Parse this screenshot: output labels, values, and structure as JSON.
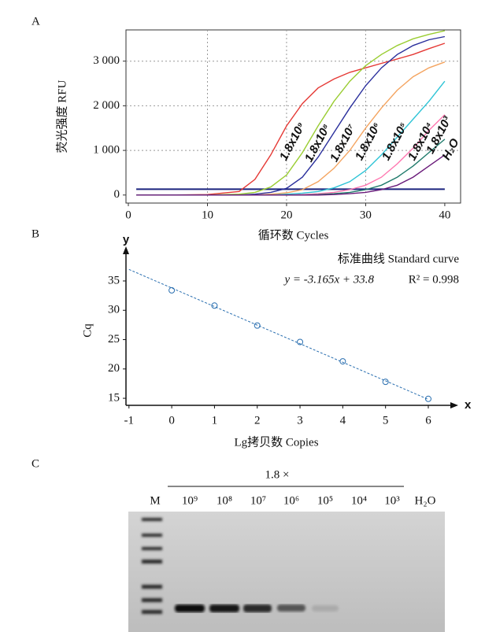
{
  "panels": [
    "A",
    "B",
    "C"
  ],
  "chart_data": [
    {
      "type": "line",
      "xlabel": "循环数 Cycles",
      "ylabel": "荧光强度 RFU",
      "x": [
        1,
        5,
        10,
        14,
        16,
        18,
        20,
        22,
        24,
        26,
        28,
        30,
        32,
        34,
        36,
        38,
        40
      ],
      "xlim": [
        -0.3,
        42
      ],
      "xticks": [
        0,
        10,
        20,
        30,
        40
      ],
      "ylim": [
        -180,
        3700
      ],
      "yticks": [
        0,
        {
          "value": 1000,
          "label": "1 000"
        },
        {
          "value": 2000,
          "label": "2 000"
        },
        {
          "value": 3000,
          "label": "3 000"
        }
      ],
      "grid": true,
      "threshold": 130,
      "threshold_color": "#1a237e",
      "series": [
        {
          "name": "1.8x10⁹",
          "color": "#e53935",
          "values": [
            0,
            0,
            10,
            80,
            350,
            900,
            1550,
            2050,
            2400,
            2600,
            2750,
            2850,
            2950,
            3050,
            3150,
            3280,
            3400
          ]
        },
        {
          "name": "1.8x10⁸",
          "color": "#9acd32",
          "values": [
            0,
            0,
            0,
            20,
            60,
            180,
            450,
            950,
            1550,
            2100,
            2550,
            2900,
            3150,
            3350,
            3500,
            3600,
            3680
          ]
        },
        {
          "name": "1.8x10⁷",
          "color": "#2a2f9c",
          "values": [
            0,
            0,
            0,
            0,
            20,
            60,
            150,
            400,
            850,
            1400,
            1950,
            2450,
            2850,
            3150,
            3350,
            3480,
            3550
          ]
        },
        {
          "name": "1.8x10⁶",
          "color": "#f4a460",
          "values": [
            0,
            0,
            0,
            0,
            0,
            20,
            50,
            120,
            300,
            600,
            1000,
            1500,
            1950,
            2350,
            2650,
            2850,
            2980
          ]
        },
        {
          "name": "1.8x10⁵",
          "color": "#2ec4d6",
          "values": [
            0,
            0,
            0,
            0,
            0,
            0,
            20,
            40,
            80,
            160,
            300,
            550,
            900,
            1300,
            1700,
            2100,
            2550
          ]
        },
        {
          "name": "1.8x10⁴",
          "color": "#ff77b0",
          "values": [
            0,
            0,
            0,
            0,
            0,
            0,
            0,
            10,
            30,
            60,
            120,
            220,
            400,
            700,
            1050,
            1450,
            1800
          ]
        },
        {
          "name": "1.8x10³",
          "color": "#1f7a6b",
          "values": [
            0,
            0,
            0,
            0,
            0,
            0,
            0,
            0,
            10,
            30,
            60,
            120,
            220,
            400,
            650,
            950,
            1250
          ]
        },
        {
          "name": "H₂O",
          "color": "#6a1b7a",
          "values": [
            0,
            0,
            0,
            0,
            0,
            0,
            0,
            0,
            0,
            10,
            30,
            60,
            120,
            220,
            400,
            650,
            900
          ]
        }
      ]
    },
    {
      "type": "scatter",
      "title": "标准曲线 Standard curve",
      "equation": "y = -3.165x + 33.8",
      "r2": "R² = 0.998",
      "xlabel": "Lg拷贝数 Copies",
      "ylabel": "Cq",
      "x_arrow": "x",
      "y_arrow": "y",
      "x": [
        0,
        1,
        2,
        3,
        4,
        5,
        6
      ],
      "values": [
        33.4,
        30.8,
        27.4,
        24.6,
        21.3,
        17.8,
        14.9
      ],
      "fit": {
        "slope": -3.165,
        "intercept": 33.8
      },
      "xlim": [
        -1.07,
        6.7
      ],
      "xticks": [
        -1,
        0,
        1,
        2,
        3,
        4,
        5,
        6
      ],
      "ylim": [
        13.8,
        40.9
      ],
      "yticks": [
        15,
        20,
        25,
        30,
        35
      ],
      "color": "#2a6fb0"
    }
  ],
  "gel": {
    "header": "1.8 ×",
    "lanes": [
      "M",
      "10⁹",
      "10⁸",
      "10⁷",
      "10⁶",
      "10⁵",
      "10⁴",
      "10³",
      "H₂O"
    ]
  }
}
